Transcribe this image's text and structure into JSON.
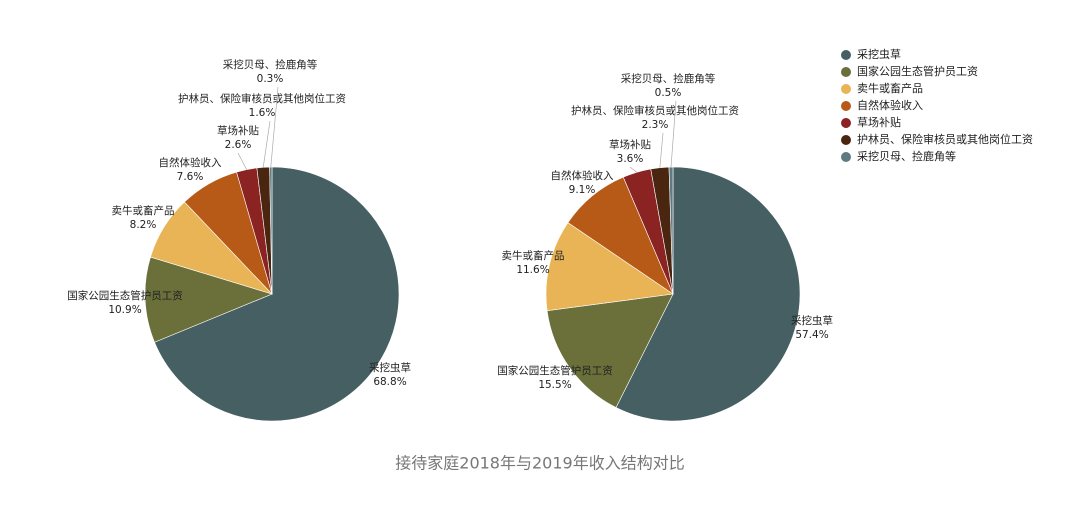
{
  "chart_data": [
    {
      "type": "pie",
      "categories": [
        "采挖虫草",
        "国家公园生态管护员工资",
        "卖牛或畜产品",
        "自然体验收入",
        "草场补贴",
        "护林员、保险审核员或其他岗位工资",
        "采挖贝母、捡鹿角等"
      ],
      "values": [
        68.8,
        10.9,
        8.2,
        7.6,
        2.6,
        1.6,
        0.3
      ],
      "value_labels": [
        "68.8%",
        "10.9%",
        "8.2%",
        "7.6%",
        "2.6%",
        "1.6%",
        "0.3%"
      ],
      "colors": [
        "#455f63",
        "#6b6f3a",
        "#e8b455",
        "#b85a17",
        "#8b2323",
        "#4a2510",
        "#5f7a80"
      ]
    },
    {
      "type": "pie",
      "categories": [
        "采挖虫草",
        "国家公园生态管护员工资",
        "卖牛或畜产品",
        "自然体验收入",
        "草场补贴",
        "护林员、保险审核员或其他岗位工资",
        "采挖贝母、捡鹿角等"
      ],
      "values": [
        57.4,
        15.5,
        11.6,
        9.1,
        3.6,
        2.3,
        0.5
      ],
      "value_labels": [
        "57.4%",
        "15.5%",
        "11.6%",
        "9.1%",
        "3.6%",
        "2.3%",
        "0.5%"
      ],
      "colors": [
        "#455f63",
        "#6b6f3a",
        "#e8b455",
        "#b85a17",
        "#8b2323",
        "#4a2510",
        "#5f7a80"
      ]
    }
  ],
  "caption": "接待家庭2018年与2019年收入结构对比"
}
